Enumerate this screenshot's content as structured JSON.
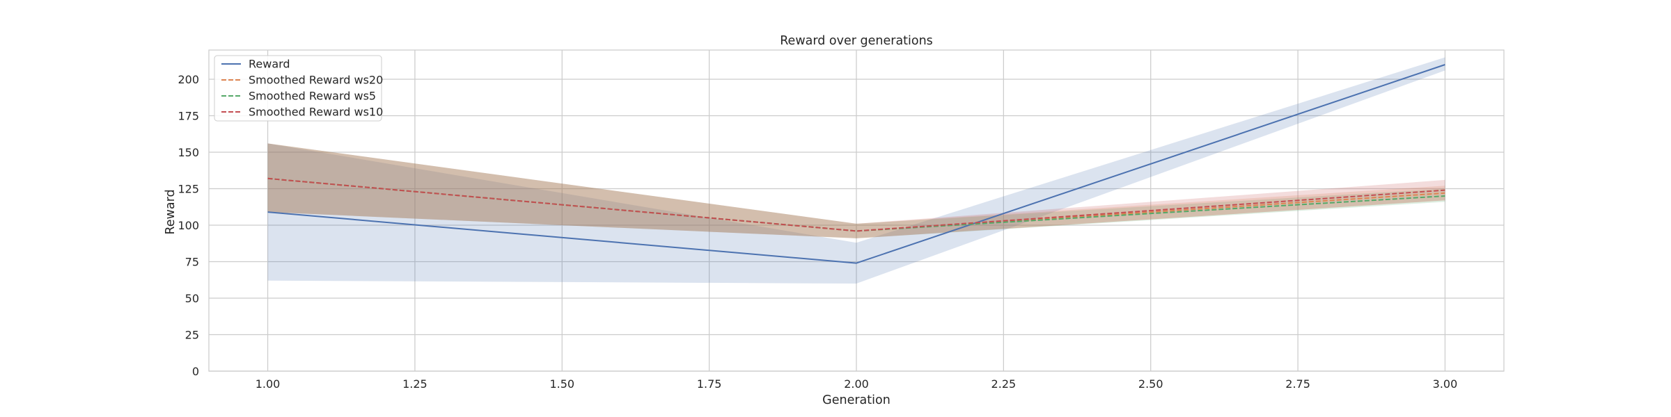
{
  "chart_data": {
    "type": "line",
    "title": "Reward over generations",
    "xlabel": "Generation",
    "ylabel": "Reward",
    "xlim": [
      0.9,
      3.1
    ],
    "ylim": [
      0,
      220
    ],
    "x_ticks": [
      1.0,
      1.25,
      1.5,
      1.75,
      2.0,
      2.25,
      2.5,
      2.75,
      3.0
    ],
    "x_tick_labels": [
      "1.00",
      "1.25",
      "1.50",
      "1.75",
      "2.00",
      "2.25",
      "2.50",
      "2.75",
      "3.00"
    ],
    "y_ticks": [
      0,
      25,
      50,
      75,
      100,
      125,
      150,
      175,
      200
    ],
    "y_tick_labels": [
      "0",
      "25",
      "50",
      "75",
      "100",
      "125",
      "150",
      "175",
      "200"
    ],
    "grid": true,
    "legend_position": "top-left",
    "x": [
      1,
      2,
      3
    ],
    "series": [
      {
        "name": "Reward",
        "style": "solid",
        "color": "#4c72b0",
        "values": [
          109,
          74,
          210
        ],
        "band_lower": [
          62,
          60,
          206
        ],
        "band_upper": [
          156,
          88,
          215
        ]
      },
      {
        "name": "Smoothed Reward ws20",
        "style": "dashed",
        "color": "#dd8452",
        "values": [
          132,
          96,
          122
        ],
        "band_lower": [
          109,
          91,
          117
        ],
        "band_upper": [
          156,
          101,
          127
        ]
      },
      {
        "name": "Smoothed Reward ws5",
        "style": "dashed",
        "color": "#55a868",
        "values": [
          132,
          96,
          120
        ],
        "band_lower": [
          109,
          91,
          116
        ],
        "band_upper": [
          156,
          101,
          125
        ]
      },
      {
        "name": "Smoothed Reward ws10",
        "style": "dashed",
        "color": "#c44e52",
        "values": [
          132,
          96,
          124
        ],
        "band_lower": [
          109,
          91,
          117
        ],
        "band_upper": [
          156,
          101,
          131
        ]
      }
    ]
  }
}
